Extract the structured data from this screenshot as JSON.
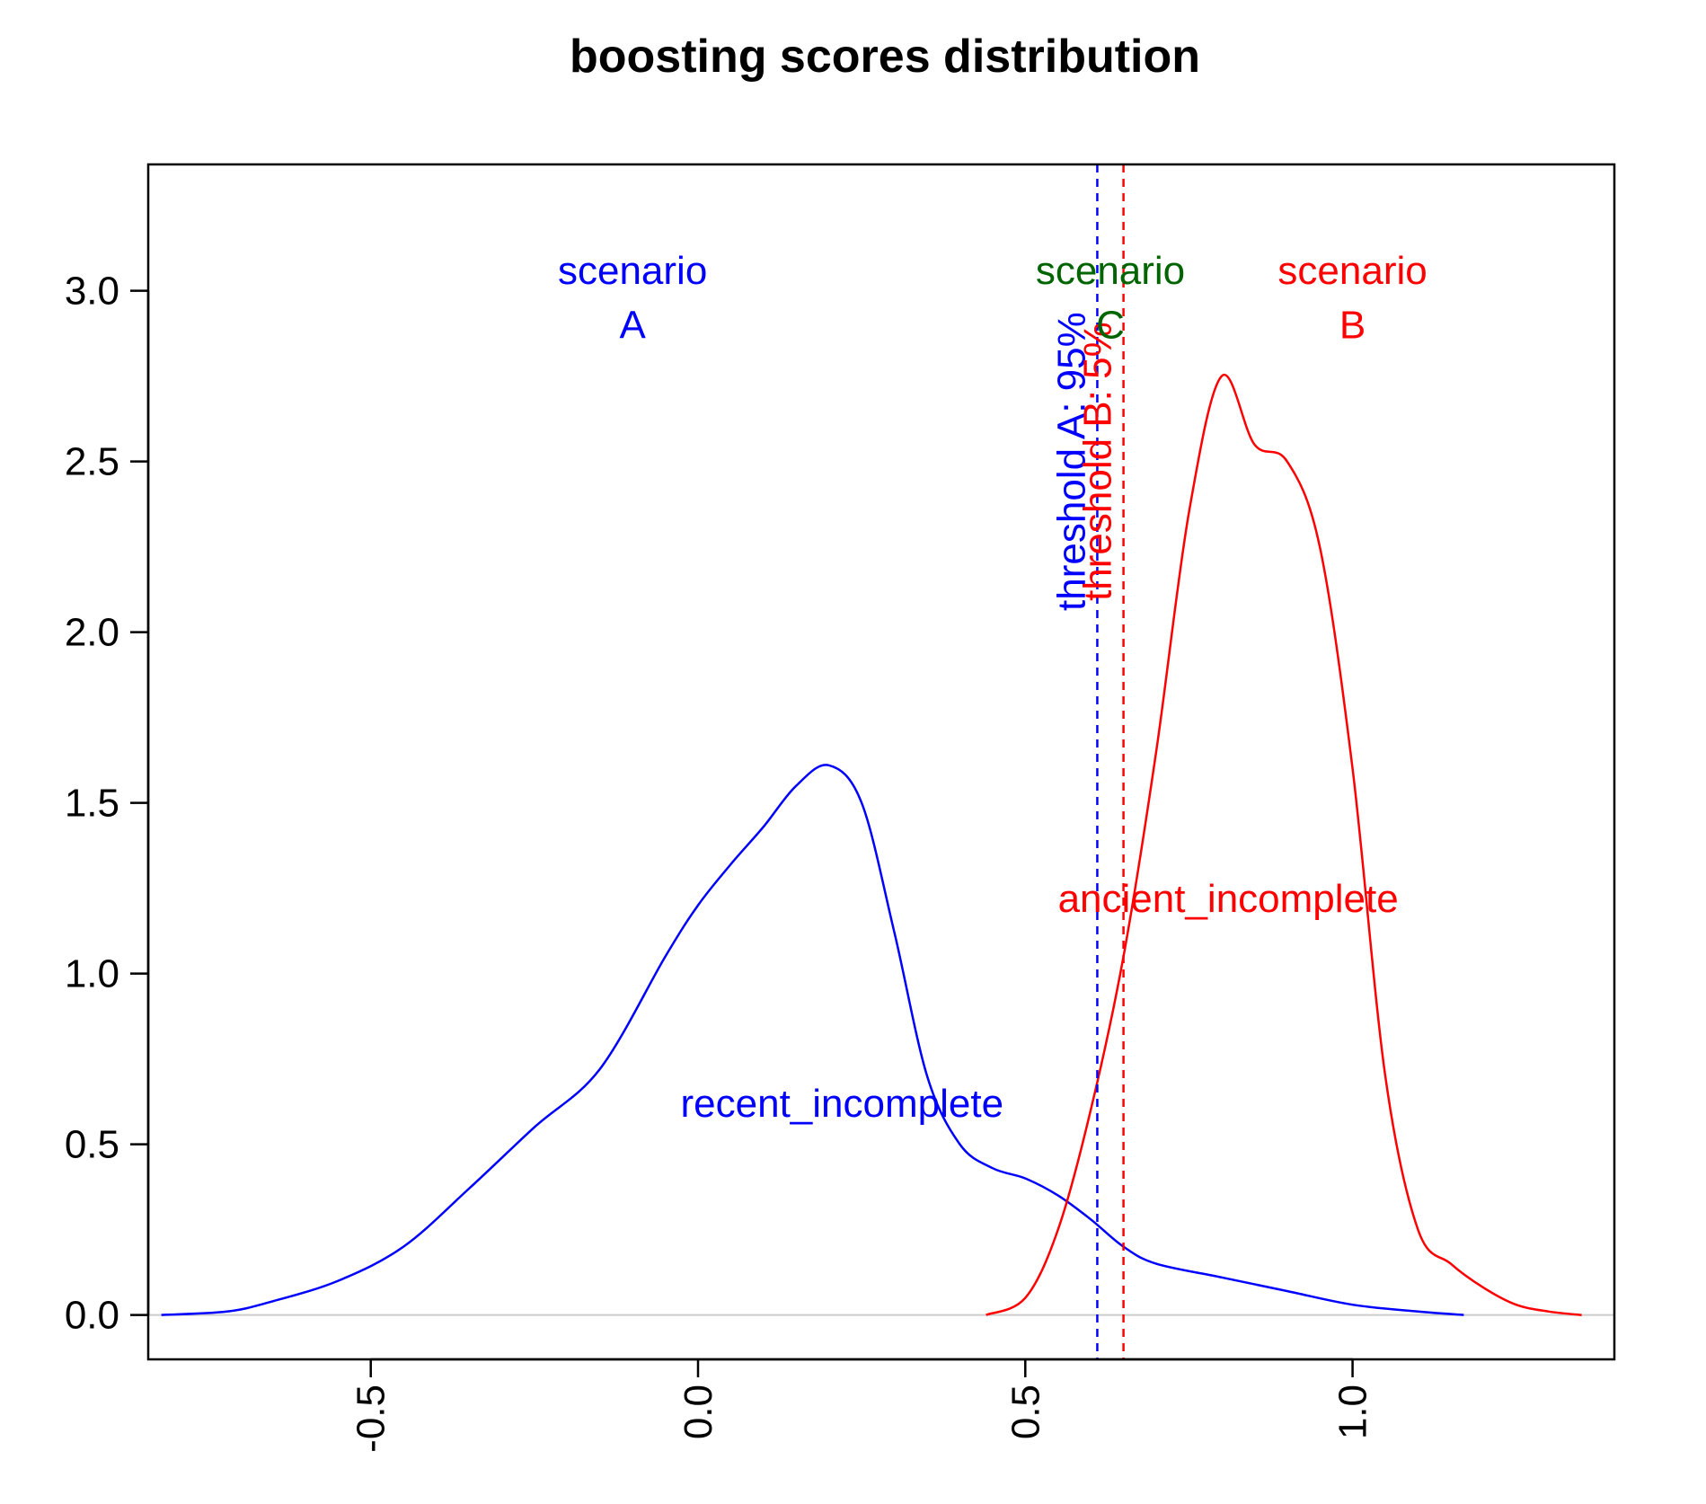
{
  "chart_data": {
    "type": "line",
    "title": "boosting scores distribution",
    "xlabel": "",
    "ylabel": "",
    "xlim": [
      -0.84,
      1.4
    ],
    "ylim": [
      -0.13,
      3.37
    ],
    "x_ticks": [
      -0.5,
      0.0,
      0.5,
      1.0
    ],
    "x_tick_labels": [
      "-0.5",
      "0.0",
      "0.5",
      "1.0"
    ],
    "y_ticks": [
      0.0,
      0.5,
      1.0,
      1.5,
      2.0,
      2.5,
      3.0
    ],
    "y_tick_labels": [
      "0.0",
      "0.5",
      "1.0",
      "1.5",
      "2.0",
      "2.5",
      "3.0"
    ],
    "legend": "none",
    "grid": false,
    "baseline": {
      "y": 0,
      "color": "#cccccc"
    },
    "series": [
      {
        "color": "#0000ff",
        "x": [
          -0.82,
          -0.72,
          -0.65,
          -0.55,
          -0.45,
          -0.35,
          -0.25,
          -0.15,
          -0.05,
          0.0,
          0.05,
          0.1,
          0.15,
          0.2,
          0.25,
          0.3,
          0.35,
          0.4,
          0.45,
          0.5,
          0.55,
          0.6,
          0.65,
          0.7,
          0.8,
          0.9,
          1.0,
          1.1,
          1.17
        ],
        "y": [
          0.0,
          0.01,
          0.04,
          0.1,
          0.2,
          0.37,
          0.55,
          0.72,
          1.05,
          1.2,
          1.32,
          1.43,
          1.55,
          1.61,
          1.5,
          1.12,
          0.7,
          0.5,
          0.43,
          0.4,
          0.35,
          0.28,
          0.2,
          0.15,
          0.11,
          0.07,
          0.03,
          0.01,
          0.0
        ]
      },
      {
        "color": "#ff0000",
        "x": [
          0.44,
          0.5,
          0.55,
          0.6,
          0.65,
          0.7,
          0.75,
          0.8,
          0.85,
          0.9,
          0.95,
          1.0,
          1.05,
          1.1,
          1.15,
          1.2,
          1.25,
          1.3,
          1.35
        ],
        "y": [
          0.0,
          0.05,
          0.25,
          0.6,
          1.05,
          1.65,
          2.35,
          2.75,
          2.55,
          2.5,
          2.25,
          1.6,
          0.7,
          0.25,
          0.15,
          0.08,
          0.03,
          0.01,
          0.0
        ]
      }
    ],
    "vlines": [
      {
        "x": 0.61,
        "color": "#0000ff",
        "style": "dashed",
        "label": "threshold A: 95%",
        "label_y": 2.5
      },
      {
        "x": 0.65,
        "color": "#ff0000",
        "style": "dashed",
        "label": "threshold B: 5%",
        "label_y": 2.5
      }
    ],
    "annotations": [
      {
        "text": "scenario",
        "x": -0.1,
        "y": 3.06,
        "color": "#0000ff"
      },
      {
        "text": "A",
        "x": -0.1,
        "y": 2.9,
        "color": "#0000ff"
      },
      {
        "text": "scenario",
        "x": 0.63,
        "y": 3.06,
        "color": "#006400"
      },
      {
        "text": "C",
        "x": 0.63,
        "y": 2.9,
        "color": "#006400"
      },
      {
        "text": "scenario",
        "x": 1.0,
        "y": 3.06,
        "color": "#ff0000"
      },
      {
        "text": "B",
        "x": 1.0,
        "y": 2.9,
        "color": "#ff0000"
      },
      {
        "text": "recent_incomplete",
        "x": 0.22,
        "y": 0.62,
        "color": "#0000ff"
      },
      {
        "text": "ancient_incomplete",
        "x": 0.81,
        "y": 1.22,
        "color": "#ff0000"
      }
    ]
  }
}
